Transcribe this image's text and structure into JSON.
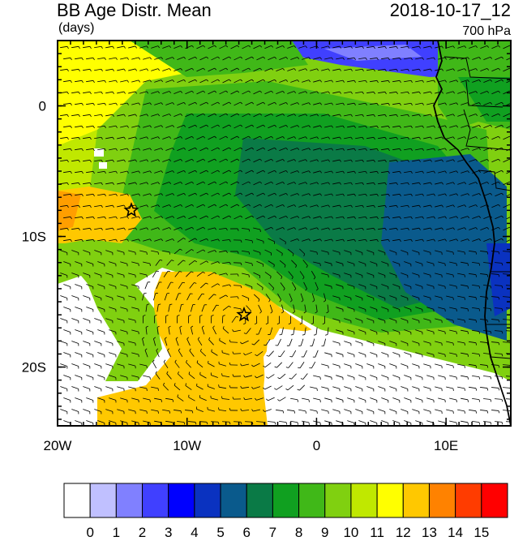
{
  "header": {
    "title": "BB Age Distr. Mean",
    "datetime": "2018-10-17_12",
    "units": "(days)",
    "level": "700 hPa"
  },
  "axes": {
    "x_ticks": [
      {
        "label": "20W",
        "lon": -20
      },
      {
        "label": "10W",
        "lon": -10
      },
      {
        "label": "0",
        "lon": 0
      },
      {
        "label": "10E",
        "lon": 10
      }
    ],
    "y_ticks": [
      {
        "label": "0",
        "lat": 0
      },
      {
        "label": "10S",
        "lat": -10
      },
      {
        "label": "20S",
        "lat": -20
      }
    ],
    "lon_range": [
      -20,
      15
    ],
    "lat_range": [
      -24.5,
      5
    ]
  },
  "colorbar": {
    "labels": [
      "0",
      "1",
      "2",
      "3",
      "4",
      "5",
      "6",
      "7",
      "8",
      "9",
      "10",
      "11",
      "12",
      "13",
      "14",
      "15"
    ],
    "colors": [
      "#ffffff",
      "#c0c0ff",
      "#8080ff",
      "#4040ff",
      "#0000ff",
      "#0a32c0",
      "#0a5a8c",
      "#0a7a46",
      "#10a020",
      "#40b818",
      "#80d010",
      "#c0e800",
      "#ffff00",
      "#ffc800",
      "#ff8200",
      "#ff3c00",
      "#ff0000"
    ]
  },
  "markers": [
    {
      "name": "star",
      "lon": -14.3,
      "lat": -8.0
    },
    {
      "name": "star",
      "lon": -5.6,
      "lat": -16.0
    }
  ],
  "features": {
    "wind_barbs": true,
    "coastline": true,
    "country_borders": true
  }
}
